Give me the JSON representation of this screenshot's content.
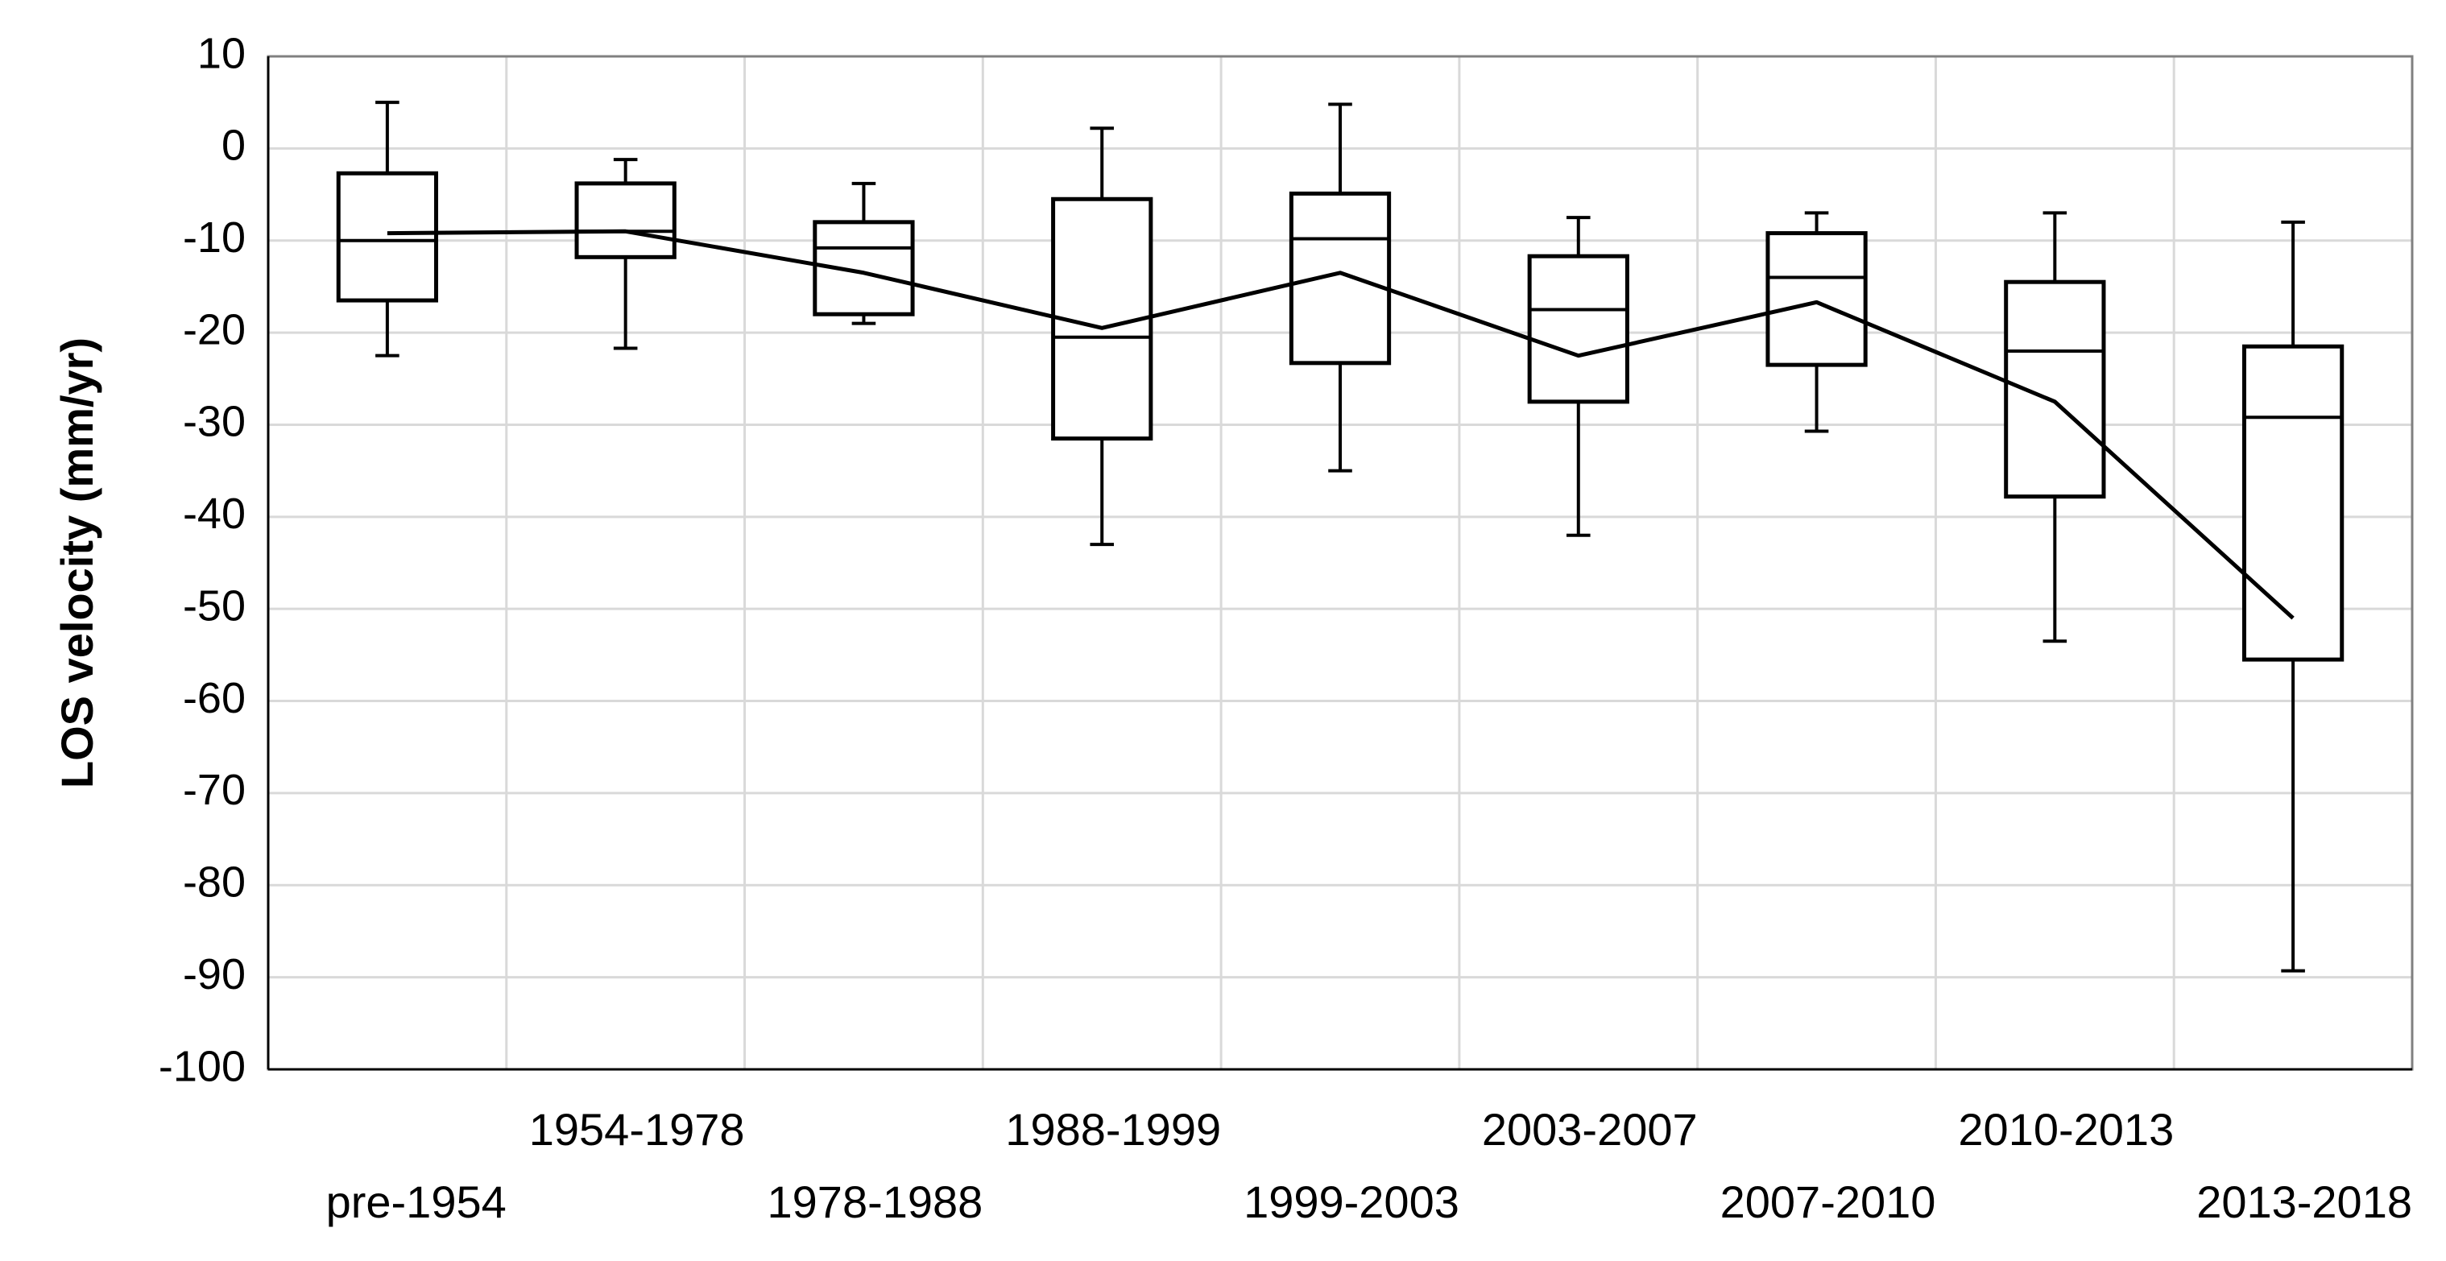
{
  "chart_data": {
    "type": "box",
    "ylabel": "LOS velocity (mm/yr)",
    "ylim": [
      -100,
      10
    ],
    "yticks": [
      10,
      0,
      -10,
      -20,
      -30,
      -40,
      -50,
      -60,
      -70,
      -80,
      -90,
      -100
    ],
    "grid": true,
    "categories": [
      "pre-1954",
      "1954-1978",
      "1978-1988",
      "1988-1999",
      "1999-2003",
      "2003-2007",
      "2007-2010",
      "2010-2013",
      "2013-2018"
    ],
    "boxes": [
      {
        "category": "pre-1954",
        "min": -22.5,
        "q1": -16.5,
        "median": -10,
        "q3": -2.7,
        "max": 5
      },
      {
        "category": "1954-1978",
        "min": -21.7,
        "q1": -11.8,
        "median": -9,
        "q3": -3.8,
        "max": -1.2
      },
      {
        "category": "1978-1988",
        "min": -19,
        "q1": -18,
        "median": -10.8,
        "q3": -8,
        "max": -3.8
      },
      {
        "category": "1988-1999",
        "min": -43,
        "q1": -31.5,
        "median": -20.5,
        "q3": -5.5,
        "max": 2.2
      },
      {
        "category": "1999-2003",
        "min": -35,
        "q1": -23.3,
        "median": -9.8,
        "q3": -4.9,
        "max": 4.8
      },
      {
        "category": "2003-2007",
        "min": -42,
        "q1": -27.5,
        "median": -17.5,
        "q3": -11.7,
        "max": -7.5
      },
      {
        "category": "2007-2010",
        "min": -30.7,
        "q1": -23.5,
        "median": -14,
        "q3": -9.2,
        "max": -7
      },
      {
        "category": "2010-2013",
        "min": -53.5,
        "q1": -37.8,
        "median": -22,
        "q3": -14.5,
        "max": -7
      },
      {
        "category": "2013-2018",
        "min": -89.3,
        "q1": -55.5,
        "median": -29.2,
        "q3": -21.5,
        "max": -8
      }
    ],
    "mean_line": [
      -9.2,
      -9,
      -13.5,
      -19.5,
      -13.5,
      -22.5,
      -16.7,
      -27.5,
      -51
    ]
  }
}
